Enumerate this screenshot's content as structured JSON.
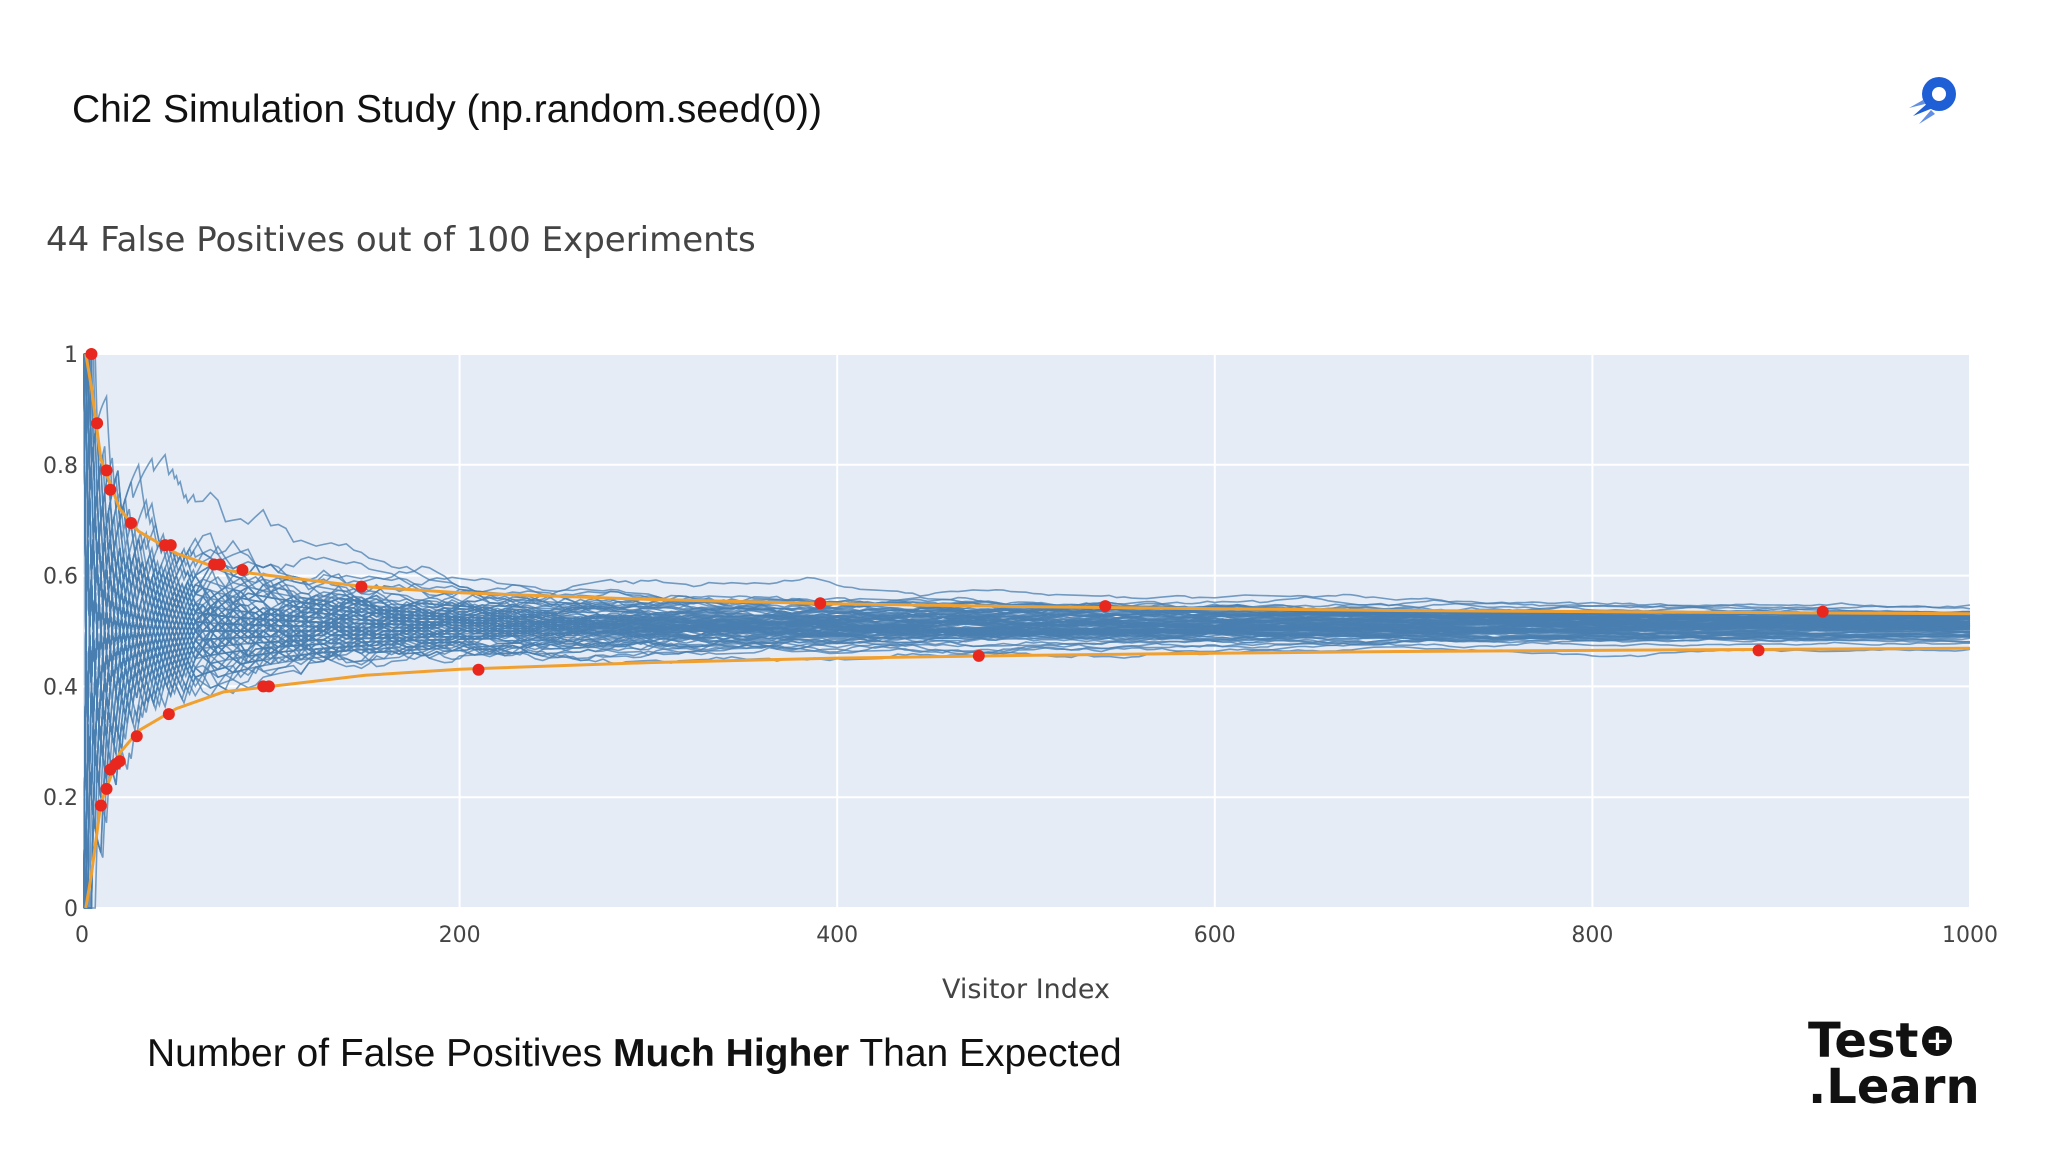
{
  "slide": {
    "title": "Chi2 Simulation Study (np.random.seed(0))",
    "footer_prefix": "Number of False Positives ",
    "footer_bold": "Much Higher",
    "footer_suffix": " Than Expected",
    "brand_line1": "Test",
    "brand_line2": ".Learn",
    "brand_plus": "+",
    "logo_icon": "rocket-icon"
  },
  "colors": {
    "plot_bg": "#e5ecf6",
    "grid": "#ffffff",
    "trace": "#4a7fb0",
    "bound": "#f0a030",
    "marker": "#e8281e"
  },
  "chart_data": {
    "type": "line",
    "title": "44 False Positives out of 100 Experiments",
    "xlabel": "Visitor Index",
    "ylabel": "",
    "xlim": [
      0,
      1000
    ],
    "ylim": [
      0,
      1
    ],
    "x_ticks": [
      0,
      200,
      400,
      600,
      800,
      1000
    ],
    "y_ticks": [
      0,
      0.2,
      0.4,
      0.6,
      0.8,
      1
    ],
    "y_tick_labels": [
      "0",
      "0.2",
      "0.4",
      "0.6",
      "0.8",
      "1"
    ],
    "grid": true,
    "n_experiments": 100,
    "false_positives": 44,
    "series": [
      {
        "values_description_mean": 0.5,
        "kind": "simulated experiments"
      }
    ],
    "upper_bound": {
      "x": [
        2,
        5,
        10,
        20,
        30,
        50,
        75,
        100,
        150,
        200,
        300,
        400,
        500,
        600,
        700,
        800,
        900,
        1000
      ],
      "y": [
        1.0,
        0.94,
        0.81,
        0.72,
        0.68,
        0.64,
        0.61,
        0.6,
        0.58,
        0.569,
        0.557,
        0.549,
        0.544,
        0.54,
        0.537,
        0.535,
        0.533,
        0.531
      ]
    },
    "lower_bound": {
      "x": [
        2,
        5,
        10,
        20,
        30,
        50,
        75,
        100,
        150,
        200,
        300,
        400,
        500,
        600,
        700,
        800,
        900,
        1000
      ],
      "y": [
        0.0,
        0.06,
        0.19,
        0.28,
        0.32,
        0.36,
        0.39,
        0.4,
        0.42,
        0.431,
        0.443,
        0.451,
        0.456,
        0.46,
        0.463,
        0.465,
        0.467,
        0.469
      ]
    },
    "false_positive_points": [
      {
        "x": 5,
        "y": 1.0
      },
      {
        "x": 8,
        "y": 0.875
      },
      {
        "x": 13,
        "y": 0.79
      },
      {
        "x": 15,
        "y": 0.755
      },
      {
        "x": 26,
        "y": 0.695
      },
      {
        "x": 44,
        "y": 0.655
      },
      {
        "x": 47,
        "y": 0.655
      },
      {
        "x": 70,
        "y": 0.62
      },
      {
        "x": 73,
        "y": 0.62
      },
      {
        "x": 85,
        "y": 0.61
      },
      {
        "x": 148,
        "y": 0.58
      },
      {
        "x": 391,
        "y": 0.55
      },
      {
        "x": 542,
        "y": 0.545
      },
      {
        "x": 922,
        "y": 0.535
      },
      {
        "x": 10,
        "y": 0.185
      },
      {
        "x": 13,
        "y": 0.215
      },
      {
        "x": 15,
        "y": 0.25
      },
      {
        "x": 18,
        "y": 0.26
      },
      {
        "x": 20,
        "y": 0.265
      },
      {
        "x": 29,
        "y": 0.31
      },
      {
        "x": 46,
        "y": 0.35
      },
      {
        "x": 96,
        "y": 0.4
      },
      {
        "x": 99,
        "y": 0.4
      },
      {
        "x": 210,
        "y": 0.43
      },
      {
        "x": 475,
        "y": 0.455
      },
      {
        "x": 888,
        "y": 0.465
      }
    ]
  }
}
